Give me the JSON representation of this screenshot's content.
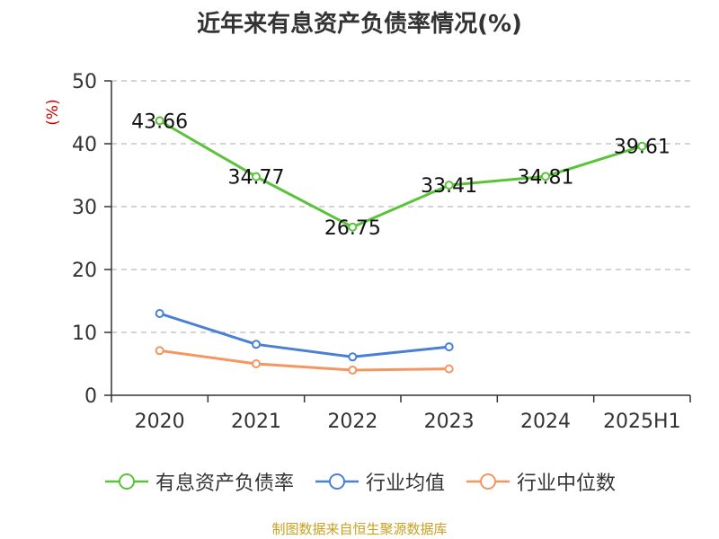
{
  "colors": {
    "series_1": "#5ac33a",
    "series_2": "#4a7fd6",
    "series_3": "#f59560",
    "axis": "#333333",
    "grid": "#bbbbbb",
    "unit": "#cc0000",
    "source": "#c8a020"
  },
  "chart_data": {
    "type": "line",
    "title": "近年来有息资产负债率情况(%)",
    "ylabel": "(%)",
    "xlabel": "",
    "categories": [
      "2020",
      "2021",
      "2022",
      "2023",
      "2024",
      "2025H1"
    ],
    "ylim": [
      0,
      50
    ],
    "yticks": [
      0,
      10,
      20,
      30,
      40,
      50
    ],
    "grid": true,
    "legend_position": "bottom",
    "series": [
      {
        "name": "有息资产负债率",
        "values": [
          43.66,
          34.77,
          26.75,
          33.41,
          34.81,
          39.61
        ],
        "data_labels": [
          "43.66",
          "34.77",
          "26.75",
          "33.41",
          "34.81",
          "39.61"
        ]
      },
      {
        "name": "行业均值",
        "values": [
          13.0,
          8.1,
          6.1,
          7.7,
          null,
          null
        ]
      },
      {
        "name": "行业中位数",
        "values": [
          7.1,
          5.0,
          4.0,
          4.2,
          null,
          null
        ]
      }
    ]
  },
  "footer": {
    "source": "制图数据来自恒生聚源数据库"
  }
}
